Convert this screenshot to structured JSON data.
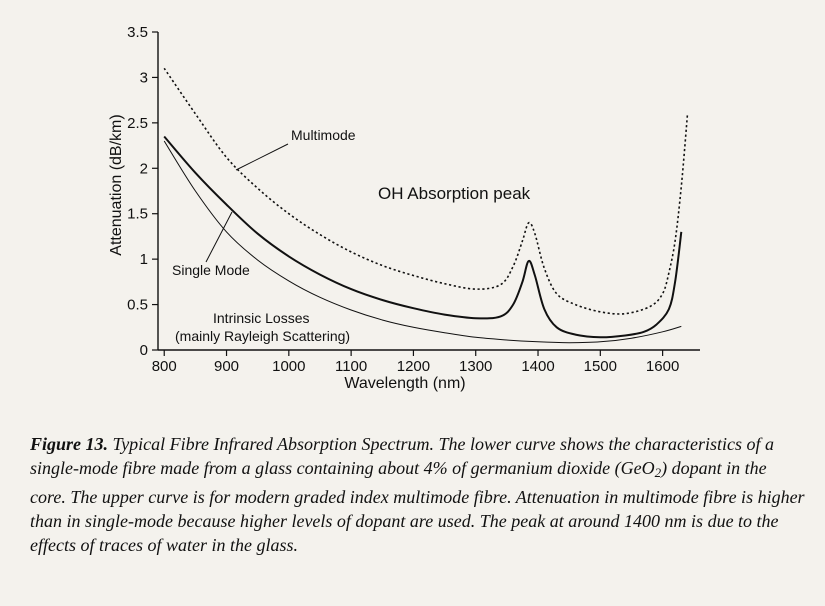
{
  "chart_data": {
    "type": "line",
    "xlabel": "Wavelength (nm)",
    "ylabel": "Attenuation (dB/km)",
    "xlim": [
      790,
      1660
    ],
    "ylim": [
      0,
      3.5
    ],
    "x_ticks": [
      "800",
      "900",
      "1000",
      "1100",
      "1200",
      "1300",
      "1400",
      "1500",
      "1600"
    ],
    "y_ticks": [
      "0",
      "0.5",
      "1",
      "1.5",
      "2",
      "2.5",
      "3",
      "3.5"
    ],
    "grid": false,
    "legend": "none",
    "series": [
      {
        "name": "Multimode",
        "style": "dotted",
        "x": [
          800,
          850,
          900,
          950,
          1000,
          1050,
          1100,
          1150,
          1200,
          1250,
          1300,
          1340,
          1360,
          1375,
          1385,
          1395,
          1410,
          1430,
          1460,
          1500,
          1540,
          1580,
          1600,
          1610,
          1620,
          1630,
          1640
        ],
        "y": [
          3.1,
          2.6,
          2.12,
          1.78,
          1.5,
          1.27,
          1.08,
          0.93,
          0.82,
          0.73,
          0.67,
          0.72,
          0.92,
          1.2,
          1.4,
          1.28,
          0.9,
          0.62,
          0.5,
          0.42,
          0.4,
          0.48,
          0.62,
          0.85,
          1.2,
          1.8,
          2.6
        ]
      },
      {
        "name": "Single Mode",
        "style": "solid",
        "x": [
          800,
          850,
          900,
          950,
          1000,
          1050,
          1100,
          1150,
          1200,
          1250,
          1300,
          1340,
          1360,
          1375,
          1385,
          1395,
          1410,
          1430,
          1460,
          1500,
          1540,
          1570,
          1590,
          1610,
          1620,
          1630
        ],
        "y": [
          2.35,
          1.95,
          1.6,
          1.28,
          1.03,
          0.83,
          0.67,
          0.55,
          0.46,
          0.39,
          0.35,
          0.37,
          0.5,
          0.75,
          0.98,
          0.82,
          0.45,
          0.25,
          0.17,
          0.14,
          0.16,
          0.2,
          0.28,
          0.45,
          0.75,
          1.3
        ]
      },
      {
        "name": "Intrinsic Losses",
        "style": "thin",
        "x": [
          800,
          850,
          900,
          950,
          1000,
          1050,
          1100,
          1150,
          1200,
          1250,
          1300,
          1350,
          1400,
          1450,
          1500,
          1550,
          1600,
          1630
        ],
        "y": [
          2.3,
          1.75,
          1.3,
          0.99,
          0.76,
          0.58,
          0.44,
          0.33,
          0.25,
          0.19,
          0.14,
          0.11,
          0.09,
          0.08,
          0.09,
          0.13,
          0.2,
          0.26
        ]
      }
    ],
    "annotations": {
      "multimode": "Multimode",
      "oh_peak": "OH Absorption peak",
      "single_mode": "Single Mode",
      "intrinsic_line1": "Intrinsic Losses",
      "intrinsic_line2": "(mainly Rayleigh Scattering)"
    }
  },
  "caption": {
    "title": "Figure 13.",
    "text_1": " Typical Fibre Infrared Absorption Spectrum.  The lower curve shows the characteristics of a single-mode fibre made from a glass containing about 4% of germanium dioxide (GeO",
    "subscript": "2",
    "text_2": ") dopant in the core.  The upper curve is for modern graded index multimode fibre.  Attenuation in multimode fibre is higher than in single-mode because higher levels of dopant are used.  The peak at around 1400 nm is due to the effects of traces of water in the glass."
  }
}
